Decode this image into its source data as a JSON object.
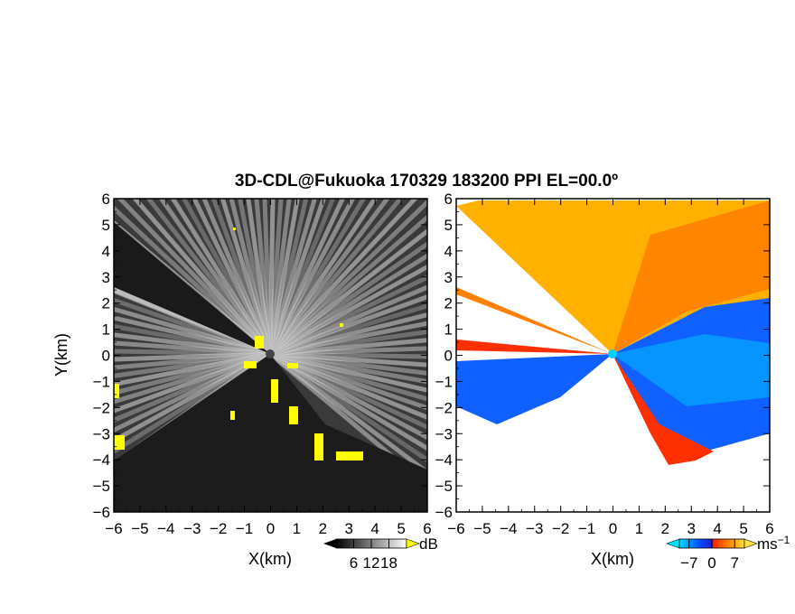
{
  "chart_data": {
    "title": "3D-CDL@Fukuoka 170329 183200 PPI EL=00.0º",
    "panels": [
      {
        "name": "intensity",
        "type": "heatmap",
        "quantity": "dB",
        "xlabel": "X(km)",
        "ylabel": "Y(km)",
        "xlim": [
          -6,
          6
        ],
        "ylim": [
          -6,
          6
        ],
        "xticks": [
          -6,
          -5,
          -4,
          -3,
          -2,
          -1,
          0,
          1,
          2,
          3,
          4,
          5,
          6
        ],
        "yticks": [
          -6,
          -5,
          -4,
          -3,
          -2,
          -1,
          0,
          1,
          2,
          3,
          4,
          5,
          6
        ],
        "colorbar": {
          "unit": "dB",
          "ticks": [
            6,
            12,
            18
          ],
          "range": [
            0,
            24
          ],
          "colors": [
            "#000000",
            "#ffffff"
          ],
          "overflow_color": "#ffff00"
        }
      },
      {
        "name": "velocity",
        "type": "heatmap",
        "quantity": "ms-1",
        "xlabel": "X(km)",
        "ylabel": "",
        "xlim": [
          -6,
          6
        ],
        "ylim": [
          -6,
          6
        ],
        "xticks": [
          -6,
          -5,
          -4,
          -3,
          -2,
          -1,
          0,
          1,
          2,
          3,
          4,
          5,
          6
        ],
        "yticks": [
          -6,
          -5,
          -4,
          -3,
          -2,
          -1,
          0,
          1,
          2,
          3,
          4,
          5,
          6
        ],
        "colorbar": {
          "unit_base": "ms",
          "unit_exp": "−1",
          "ticks": [
            -7,
            0,
            7
          ],
          "range": [
            -10,
            10
          ],
          "colors": [
            "#00e0ff",
            "#0050ff",
            "#3030ff",
            "#ff3000",
            "#ff9000",
            "#ffe040"
          ]
        }
      }
    ]
  }
}
